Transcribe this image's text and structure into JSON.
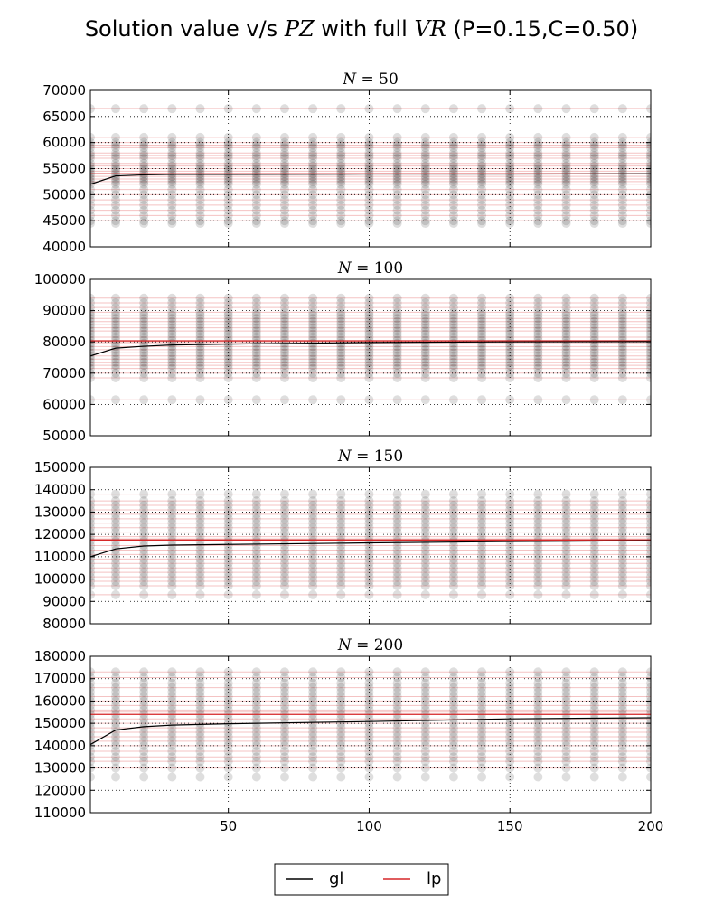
{
  "figure": {
    "title_main": "Solution value v/s ",
    "title_pz": "PZ",
    "title_mid": " with full ",
    "title_vr": "VR",
    "title_params": " (P=0.15,C=0.50)"
  },
  "colors": {
    "gl": "#000000",
    "lp": "#d62728",
    "points": "#000000"
  },
  "legend": {
    "placement": "bottom-center",
    "items": [
      {
        "label": "gl",
        "color": "#000000"
      },
      {
        "label": "lp",
        "color": "#d62728"
      }
    ]
  },
  "chart_data": [
    {
      "type": "scatter",
      "title": "N = 50",
      "title_var": "N",
      "title_val": "= 50",
      "xlim": [
        1,
        200
      ],
      "ylim": [
        40000,
        70000
      ],
      "x_ticks": [
        50,
        100,
        150,
        200
      ],
      "x_tick_labels": [],
      "y_ticks": [
        40000,
        45000,
        50000,
        55000,
        60000,
        65000,
        70000
      ],
      "y_tick_labels": [
        "40000",
        "45000",
        "50000",
        "55000",
        "60000",
        "65000",
        "70000"
      ],
      "grid": true,
      "x_samples": [
        1,
        10,
        20,
        30,
        40,
        50,
        60,
        70,
        80,
        90,
        100,
        110,
        120,
        130,
        140,
        150,
        160,
        170,
        180,
        190,
        200
      ],
      "gl_line": {
        "x": [
          1,
          10,
          20,
          30,
          50,
          100,
          150,
          200
        ],
        "y": [
          52000,
          53600,
          53800,
          53900,
          53900,
          53950,
          53950,
          54000
        ]
      },
      "lp_mean": 54000,
      "lp_levels": [
        45000,
        46000,
        47000,
        48000,
        49000,
        50000,
        51000,
        52000,
        52500,
        53000,
        53500,
        54000,
        54500,
        55000,
        55500,
        56000,
        57000,
        57500,
        58000,
        59000,
        59500,
        60000,
        61000,
        66500
      ],
      "point_values": [
        44500,
        45000,
        46000,
        47000,
        48000,
        49000,
        50000,
        51000,
        52000,
        52500,
        53000,
        53500,
        54000,
        54500,
        55000,
        55500,
        56000,
        57000,
        57500,
        58000,
        59000,
        59500,
        60000,
        61000,
        66500
      ]
    },
    {
      "type": "scatter",
      "title": "N = 100",
      "title_var": "N",
      "title_val": "= 100",
      "xlim": [
        1,
        200
      ],
      "ylim": [
        50000,
        100000
      ],
      "x_ticks": [
        50,
        100,
        150,
        200
      ],
      "x_tick_labels": [],
      "y_ticks": [
        50000,
        60000,
        70000,
        80000,
        90000,
        100000
      ],
      "y_tick_labels": [
        "50000",
        "60000",
        "70000",
        "80000",
        "90000",
        "100000"
      ],
      "grid": true,
      "x_samples": [
        1,
        10,
        20,
        30,
        40,
        50,
        60,
        70,
        80,
        90,
        100,
        110,
        120,
        130,
        140,
        150,
        160,
        170,
        180,
        190,
        200
      ],
      "gl_line": {
        "x": [
          1,
          10,
          20,
          30,
          50,
          100,
          150,
          200
        ],
        "y": [
          75500,
          78000,
          78600,
          79000,
          79300,
          79800,
          80000,
          80100
        ]
      },
      "lp_mean": 80300,
      "lp_levels": [
        61500,
        68500,
        70000,
        71500,
        72500,
        73500,
        74500,
        75500,
        76500,
        77500,
        78500,
        79500,
        80000,
        80500,
        81500,
        82500,
        83500,
        84500,
        85500,
        86500,
        87500,
        88500,
        89500,
        91000,
        92500,
        94000
      ],
      "point_values": [
        61500,
        68500,
        70000,
        71500,
        72500,
        73500,
        74500,
        75500,
        76500,
        77500,
        78500,
        79500,
        80500,
        81500,
        82500,
        83500,
        84500,
        85500,
        86500,
        87500,
        88500,
        89500,
        91000,
        92500,
        94000
      ]
    },
    {
      "type": "scatter",
      "title": "N = 150",
      "title_var": "N",
      "title_val": "= 150",
      "xlim": [
        1,
        200
      ],
      "ylim": [
        80000,
        150000
      ],
      "x_ticks": [
        50,
        100,
        150,
        200
      ],
      "x_tick_labels": [],
      "y_ticks": [
        80000,
        90000,
        100000,
        110000,
        120000,
        130000,
        140000,
        150000
      ],
      "y_tick_labels": [
        "80000",
        "90000",
        "100000",
        "110000",
        "120000",
        "130000",
        "140000",
        "150000"
      ],
      "grid": true,
      "x_samples": [
        1,
        10,
        20,
        30,
        40,
        50,
        60,
        70,
        80,
        90,
        100,
        110,
        120,
        130,
        140,
        150,
        160,
        170,
        180,
        190,
        200
      ],
      "gl_line": {
        "x": [
          1,
          10,
          20,
          30,
          50,
          100,
          150,
          200
        ],
        "y": [
          110000,
          113500,
          114800,
          115200,
          115500,
          116200,
          116800,
          117200
        ]
      },
      "lp_mean": 117500,
      "lp_levels": [
        93000,
        97000,
        99000,
        101000,
        103000,
        105000,
        107000,
        109000,
        111000,
        113000,
        115000,
        117000,
        118000,
        119000,
        121000,
        123000,
        125000,
        127000,
        129000,
        131000,
        133000,
        135000,
        138000
      ],
      "point_values": [
        93000,
        97000,
        99000,
        101000,
        103000,
        105000,
        107000,
        109000,
        111000,
        113000,
        115000,
        117000,
        119000,
        121000,
        123000,
        125000,
        127000,
        129000,
        131000,
        133000,
        135000,
        138000
      ]
    },
    {
      "type": "scatter",
      "title": "N = 200",
      "title_var": "N",
      "title_val": "= 200",
      "xlim": [
        1,
        200
      ],
      "ylim": [
        110000,
        180000
      ],
      "x_ticks": [
        50,
        100,
        150,
        200
      ],
      "x_tick_labels": [
        "50",
        "100",
        "150",
        "200"
      ],
      "y_ticks": [
        110000,
        120000,
        130000,
        140000,
        150000,
        160000,
        170000,
        180000
      ],
      "y_tick_labels": [
        "110000",
        "120000",
        "130000",
        "140000",
        "150000",
        "160000",
        "170000",
        "180000"
      ],
      "grid": true,
      "x_samples": [
        1,
        10,
        20,
        30,
        40,
        50,
        60,
        70,
        80,
        90,
        100,
        110,
        120,
        130,
        140,
        150,
        160,
        170,
        180,
        190,
        200
      ],
      "gl_line": {
        "x": [
          1,
          10,
          20,
          30,
          50,
          100,
          150,
          200
        ],
        "y": [
          140500,
          147000,
          148500,
          149200,
          149800,
          150800,
          152000,
          152500
        ]
      },
      "lp_mean": 154000,
      "lp_levels": [
        126000,
        130000,
        133000,
        135000,
        137500,
        140000,
        142000,
        144000,
        146000,
        148000,
        150000,
        152000,
        154000,
        155000,
        156000,
        158000,
        160000,
        162000,
        164000,
        166000,
        168000,
        170500,
        173000
      ],
      "point_values": [
        126000,
        130000,
        133000,
        135000,
        137500,
        140000,
        142000,
        144000,
        146000,
        148000,
        150000,
        152000,
        154000,
        156000,
        158000,
        160000,
        162000,
        164000,
        166000,
        168000,
        170500,
        173000
      ]
    }
  ]
}
